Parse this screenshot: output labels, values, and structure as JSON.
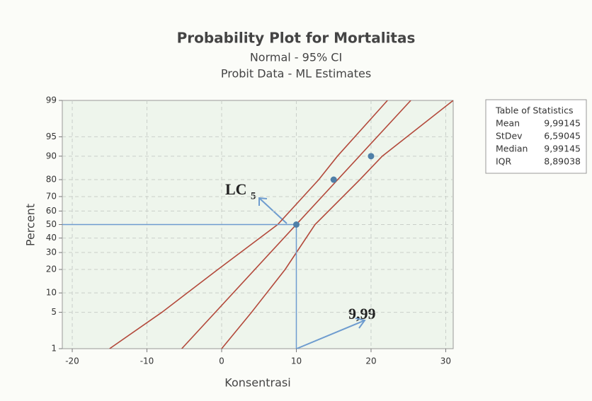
{
  "chart_data": {
    "type": "probability",
    "title": "Probability Plot for Mortalitas",
    "subtitles": [
      "Normal - 95% CI",
      "Probit Data - ML Estimates"
    ],
    "xlabel": "Konsentrasi",
    "ylabel": "Percent",
    "xlim": [
      -21.33,
      31
    ],
    "ylim": [
      1,
      99
    ],
    "yscale": "normal",
    "xticks": [
      -20,
      -10,
      0,
      10,
      20,
      30
    ],
    "yticks": [
      1,
      5,
      10,
      20,
      30,
      40,
      50,
      60,
      70,
      80,
      90,
      95,
      99
    ],
    "grid": true,
    "series": [
      {
        "style": "line",
        "color": "#b3493b",
        "x": [
          -15,
          -8,
          -0.5,
          7.5,
          13,
          15.5,
          22.2
        ],
        "y": [
          1,
          5,
          20,
          50,
          80,
          90,
          99
        ]
      },
      {
        "style": "line",
        "color": "#b3493b",
        "x": [
          -5.34,
          25.32
        ],
        "y": [
          1,
          99
        ]
      },
      {
        "style": "line",
        "color": "#b3493b",
        "x": [
          0,
          4,
          8.5,
          12.5,
          18.5,
          21.5,
          31
        ],
        "y": [
          1,
          5,
          20,
          50,
          80,
          90,
          99
        ]
      },
      {
        "style": "markers",
        "color": "#4f7fa8",
        "x": [
          10,
          15,
          20
        ],
        "y": [
          50,
          80,
          90
        ]
      }
    ],
    "annotations": [
      {
        "text": "LC",
        "subscript": "5"
      },
      {
        "text": "9,99"
      }
    ],
    "stats_table": {
      "title": "Table of Statistics",
      "rows": [
        [
          "Mean",
          "9,99145"
        ],
        [
          "StDev",
          "6,59045"
        ],
        [
          "Median",
          "9,99145"
        ],
        [
          "IQR",
          "8,89038"
        ]
      ]
    }
  }
}
